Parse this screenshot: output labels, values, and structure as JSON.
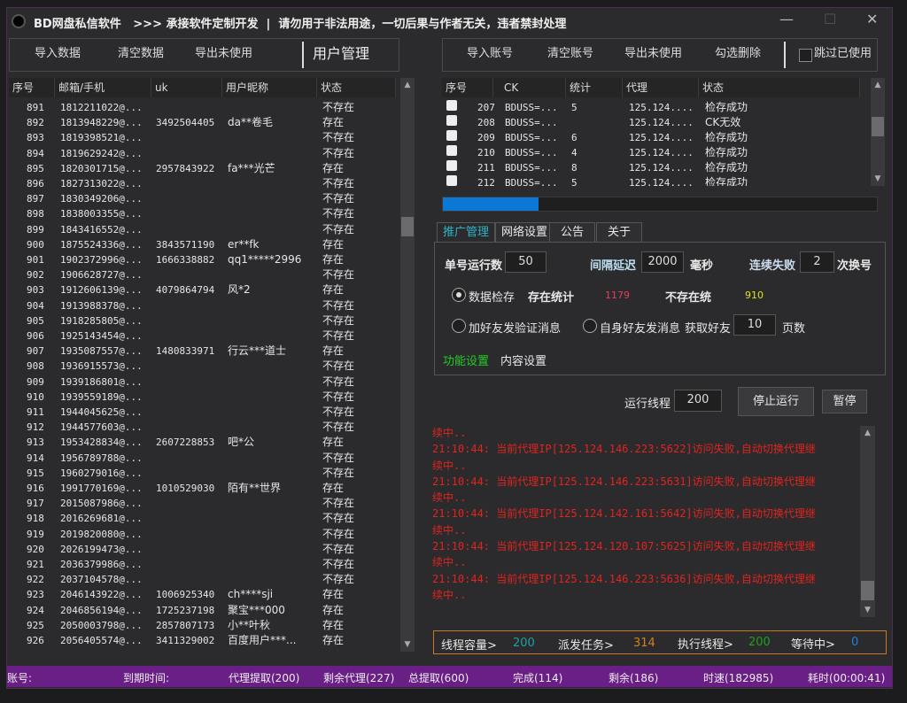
{
  "window": {
    "title": "BD网盘私信软件   >>> 承接软件定制开发  |  请勿用于非法用途，一切后果与作者无关，违者禁封处理",
    "minimize": "—",
    "maximize": "☐",
    "close": "✕"
  },
  "left_toolbar": {
    "import": "导入数据",
    "clear": "清空数据",
    "export": "导出未使用",
    "title": "用户管理"
  },
  "left_table": {
    "columns": [
      "序号",
      "邮箱/手机",
      "uk",
      "用户昵称",
      "状态"
    ],
    "rows": [
      [
        "891",
        "1812211022@...",
        "",
        "",
        "不存在"
      ],
      [
        "892",
        "1813948229@...",
        "3492504405",
        "da**卷毛",
        "存在"
      ],
      [
        "893",
        "1819398521@...",
        "",
        "",
        "不存在"
      ],
      [
        "894",
        "1819629242@...",
        "",
        "",
        "不存在"
      ],
      [
        "895",
        "1820301715@...",
        "2957843922",
        "fa***光芒",
        "存在"
      ],
      [
        "896",
        "1827313022@...",
        "",
        "",
        "不存在"
      ],
      [
        "897",
        "1830349206@...",
        "",
        "",
        "不存在"
      ],
      [
        "898",
        "1838003355@...",
        "",
        "",
        "不存在"
      ],
      [
        "899",
        "1843416552@...",
        "",
        "",
        "不存在"
      ],
      [
        "900",
        "1875524336@...",
        "3843571190",
        "er**fk",
        "存在"
      ],
      [
        "901",
        "1902372996@...",
        "1666338882",
        "qq1*****2996",
        "存在"
      ],
      [
        "902",
        "1906628727@...",
        "",
        "",
        "不存在"
      ],
      [
        "903",
        "1912606139@...",
        "4079864794",
        "风*2",
        "存在"
      ],
      [
        "904",
        "1913988378@...",
        "",
        "",
        "不存在"
      ],
      [
        "905",
        "1918285805@...",
        "",
        "",
        "不存在"
      ],
      [
        "906",
        "1925143454@...",
        "",
        "",
        "不存在"
      ],
      [
        "907",
        "1935087557@...",
        "1480833971",
        "行云***道士",
        "存在"
      ],
      [
        "908",
        "1936915573@...",
        "",
        "",
        "不存在"
      ],
      [
        "909",
        "1939186801@...",
        "",
        "",
        "不存在"
      ],
      [
        "910",
        "1939559189@...",
        "",
        "",
        "不存在"
      ],
      [
        "911",
        "1944045625@...",
        "",
        "",
        "不存在"
      ],
      [
        "912",
        "1944577603@...",
        "",
        "",
        "不存在"
      ],
      [
        "913",
        "1953428834@...",
        "2607228853",
        "吧*公",
        "存在"
      ],
      [
        "914",
        "1956789788@...",
        "",
        "",
        "不存在"
      ],
      [
        "915",
        "1960279016@...",
        "",
        "",
        "不存在"
      ],
      [
        "916",
        "1991770169@...",
        "1010529030",
        "陌有**世界",
        "存在"
      ],
      [
        "917",
        "2015087986@...",
        "",
        "",
        "不存在"
      ],
      [
        "918",
        "2016269681@...",
        "",
        "",
        "不存在"
      ],
      [
        "919",
        "2019820080@...",
        "",
        "",
        "不存在"
      ],
      [
        "920",
        "2026199473@...",
        "",
        "",
        "不存在"
      ],
      [
        "921",
        "2036379986@...",
        "",
        "",
        "不存在"
      ],
      [
        "922",
        "2037104578@...",
        "",
        "",
        "不存在"
      ],
      [
        "923",
        "2046143922@...",
        "1006925340",
        "ch****sji",
        "存在"
      ],
      [
        "924",
        "2046856194@...",
        "1725237198",
        "聚宝***000",
        "存在"
      ],
      [
        "925",
        "2050003798@...",
        "2857807173",
        "小**叶秋",
        "存在"
      ],
      [
        "926",
        "2056405574@...",
        "3411329002",
        "百度用户***...",
        "存在"
      ]
    ]
  },
  "right_toolbar": {
    "import": "导入账号",
    "clear": "清空账号",
    "export": "导出未使用",
    "delete_checked": "勾选删除",
    "skip_used": "跳过已使用"
  },
  "right_table": {
    "columns": [
      "序号",
      "CK",
      "统计",
      "代理",
      "状态"
    ],
    "rows": [
      [
        "207",
        "BDUSS=...",
        "5",
        "125.124....",
        "检存成功"
      ],
      [
        "208",
        "BDUSS=...",
        "",
        "125.124....",
        "CK无效"
      ],
      [
        "209",
        "BDUSS=...",
        "6",
        "125.124....",
        "检存成功"
      ],
      [
        "210",
        "BDUSS=...",
        "4",
        "125.124....",
        "检存成功"
      ],
      [
        "211",
        "BDUSS=...",
        "8",
        "125.124....",
        "检存成功"
      ],
      [
        "212",
        "BDUSS=...",
        "5",
        "125.124....",
        "检存成功"
      ]
    ]
  },
  "progress": {
    "percent": 22,
    "color": "#0a78d4"
  },
  "tabs": [
    "推广管理",
    "网络设置",
    "公告",
    "关于"
  ],
  "settings": {
    "single_run_label": "单号运行数",
    "single_run": "50",
    "interval_label": "间隔延迟",
    "interval": "2000",
    "interval_unit": "毫秒",
    "fail_label": "连续失败",
    "fail": "2",
    "fail_unit": "次换号",
    "mode_check": "数据检存",
    "exist_label": "存在统计",
    "exist_count": "1179",
    "not_exist_label": "不存在统",
    "not_exist_count": "910",
    "mode_add_friend": "加好友发验证消息",
    "mode_self_friend": "自身好友发消息",
    "fetch_label": "获取好友",
    "fetch_pages": "10",
    "fetch_unit": "页数",
    "func_settings": "功能设置",
    "content_settings": "内容设置"
  },
  "run": {
    "threads_label": "运行线程",
    "threads": "200",
    "stop": "停止运行",
    "pause": "暂停"
  },
  "log": [
    "续中..",
    "21:10:44: 当前代理IP[125.124.146.223:5622]访问失败,自动切换代理继",
    "续中..",
    "21:10:44: 当前代理IP[125.124.146.223:5631]访问失败,自动切换代理继",
    "续中..",
    "21:10:44: 当前代理IP[125.124.142.161:5642]访问失败,自动切换代理继",
    "续中..",
    "21:10:44: 当前代理IP[125.124.120.107:5625]访问失败,自动切换代理继",
    "续中..",
    "21:10:44: 当前代理IP[125.124.146.223:5636]访问失败,自动切换代理继",
    "续中.."
  ],
  "stats": {
    "capacity_label": "线程容量>",
    "capacity": "200",
    "dispatched_label": "派发任务>",
    "dispatched": "314",
    "running_label": "执行线程>",
    "running": "200",
    "waiting_label": "等待中>",
    "waiting": "0"
  },
  "status_bar": [
    "账号:",
    "到期时间:",
    "代理提取(200)",
    "剩余代理(227)",
    "总提取(600)",
    "完成(114)",
    "剩余(186)",
    "时速(182985)",
    "耗时(00:00:41)"
  ],
  "colors": {
    "status_bar": "#6a1f87",
    "log": "#e0241e",
    "tab_active": "#2ab3c8",
    "func_settings": "#22cc22",
    "exist_count": "#e04060",
    "not_exist_count": "#e0e020",
    "capacity": "#1fa0a0",
    "dispatched": "#d08020",
    "running": "#20a020",
    "waiting": "#2080e0"
  }
}
